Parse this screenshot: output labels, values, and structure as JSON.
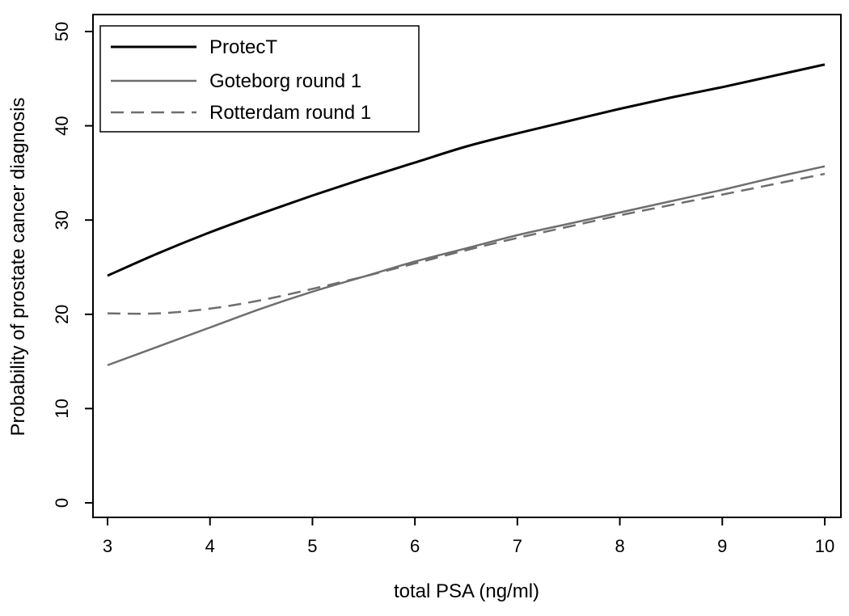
{
  "chart_data": {
    "type": "line",
    "title": "",
    "xlabel": "total PSA (ng/ml)",
    "ylabel": "Probability of prostate cancer diagnosis",
    "xlim": [
      3,
      10
    ],
    "ylim": [
      0,
      50
    ],
    "xticks": [
      3,
      4,
      5,
      6,
      7,
      8,
      9,
      10
    ],
    "yticks": [
      0,
      10,
      20,
      30,
      40,
      50
    ],
    "grid": false,
    "legend_position": "top-left",
    "x": [
      3,
      3.5,
      4,
      4.5,
      5,
      5.5,
      6,
      6.5,
      7,
      7.5,
      8,
      8.5,
      9,
      9.5,
      10
    ],
    "series": [
      {
        "name": "ProtecT",
        "color": "#000000",
        "style": "solid",
        "values": [
          24.1,
          26.5,
          28.7,
          30.7,
          32.6,
          34.4,
          36.1,
          37.8,
          39.2,
          40.5,
          41.8,
          43.0,
          44.1,
          45.3,
          46.5
        ]
      },
      {
        "name": "Goteborg round 1",
        "color": "#6e6e6e",
        "style": "solid",
        "values": [
          14.6,
          16.6,
          18.6,
          20.6,
          22.4,
          24.0,
          25.6,
          27.0,
          28.4,
          29.6,
          30.8,
          32.0,
          33.2,
          34.5,
          35.7
        ]
      },
      {
        "name": "Rotterdam round 1",
        "color": "#6e6e6e",
        "style": "dashed",
        "values": [
          20.1,
          20.1,
          20.6,
          21.5,
          22.7,
          24.0,
          25.4,
          26.8,
          28.1,
          29.3,
          30.5,
          31.6,
          32.7,
          33.8,
          34.9
        ]
      }
    ]
  }
}
